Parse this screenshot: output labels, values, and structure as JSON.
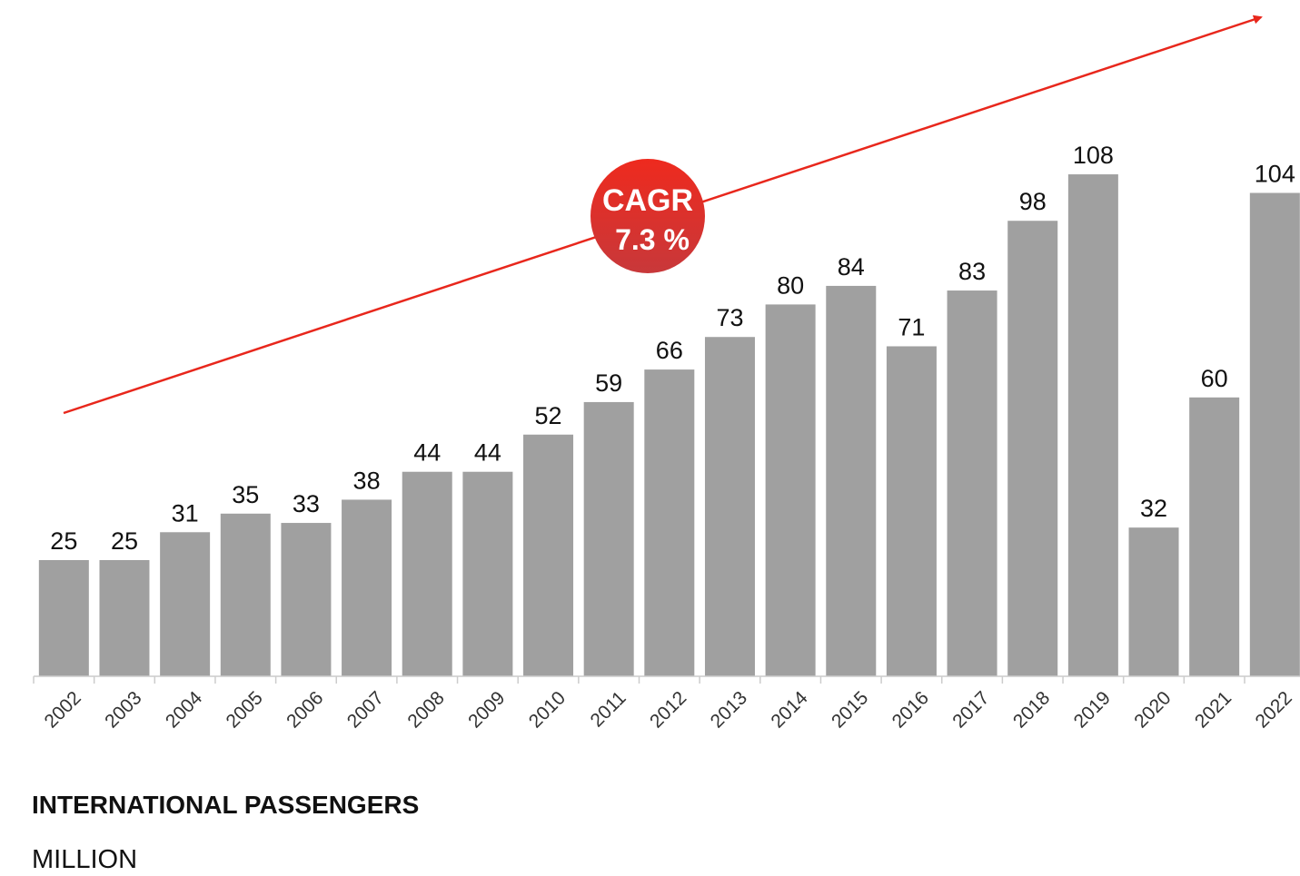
{
  "chart_data": {
    "type": "bar",
    "title": "INTERNATIONAL PASSENGERS",
    "subtitle": "MILLION",
    "annotation": [
      "CAGR",
      "7.3 %"
    ],
    "categories": [
      "2002",
      "2003",
      "2004",
      "2005",
      "2006",
      "2007",
      "2008",
      "2009",
      "2010",
      "2011",
      "2012",
      "2013",
      "2014",
      "2015",
      "2016",
      "2017",
      "2018",
      "2019",
      "2020",
      "2021",
      "2022"
    ],
    "values": [
      25,
      25,
      31,
      35,
      33,
      38,
      44,
      44,
      52,
      59,
      66,
      73,
      80,
      84,
      71,
      83,
      98,
      108,
      32,
      60,
      104
    ],
    "color": "#a0a0a0"
  }
}
